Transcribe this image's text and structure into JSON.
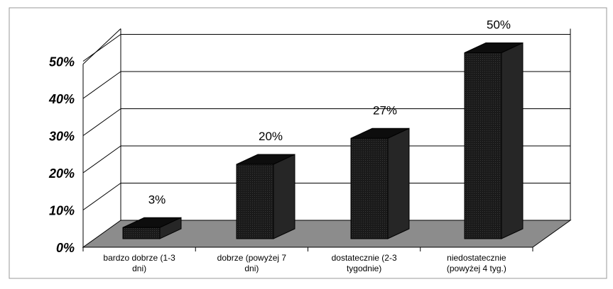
{
  "chart_data": {
    "type": "bar",
    "categories": [
      "bardzo dobrze (1-3 dni)",
      "dobrze (powyżej 7 dni)",
      "dostatecznie (2-3 tygodnie)",
      "niedostatecznie (powyżej 4 tyg.)"
    ],
    "category_lines": [
      [
        "bardzo dobrze (1-3",
        "dni)"
      ],
      [
        "dobrze (powyżej 7",
        "dni)"
      ],
      [
        "dostatecznie (2-3",
        "tygodnie)"
      ],
      [
        "niedostatecznie",
        "(powyżej 4 tyg.)"
      ]
    ],
    "values": [
      3,
      20,
      27,
      50
    ],
    "data_labels": [
      "3%",
      "20%",
      "27%",
      "50%"
    ],
    "y_ticks": [
      "0%",
      "10%",
      "20%",
      "30%",
      "40%",
      "50%"
    ],
    "ylim": [
      0,
      50
    ],
    "title": "",
    "xlabel": "",
    "ylabel": "",
    "grid": true,
    "style": "3d",
    "colors": {
      "bar_front": "#1a1a1a",
      "bar_top": "#0d0d0d",
      "bar_side": "#262626",
      "floor": "#8c8c8c",
      "grid": "#000000",
      "frame": "#9a9a9a"
    }
  }
}
